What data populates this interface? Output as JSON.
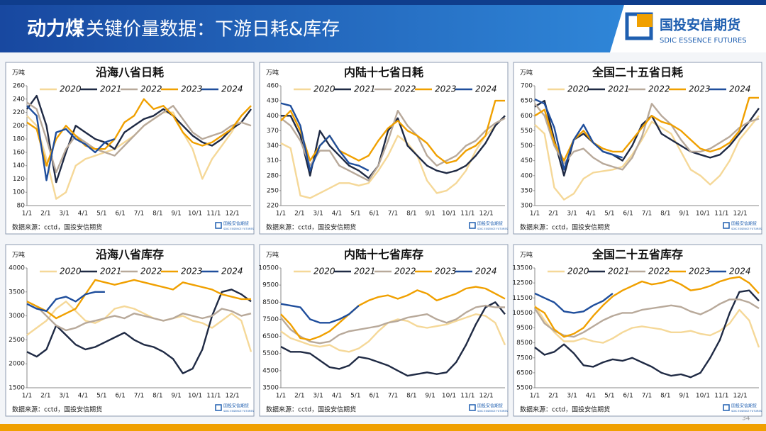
{
  "header": {
    "title_bold": "动力煤",
    "title_rest": "关键价量数据：下游日耗&库存",
    "logo_name": "国投安信期货",
    "logo_en": "SDIC ESSENCE FUTURES",
    "page": "34"
  },
  "chart_data": [
    {
      "type": "line",
      "title": "沿海八省日耗",
      "unit": "万吨",
      "source": "数据来源：cctd，国投安信期货",
      "logo_name": "国投安信期货",
      "logo_en": "SDIC ESSENCE FUTURES",
      "xtick_labels": [
        "1/1",
        "2/1",
        "3/1",
        "4/1",
        "5/1",
        "6/1",
        "7/1",
        "8/1",
        "9/1",
        "10/1",
        "11/1",
        "12/1"
      ],
      "ylim": [
        80,
        260
      ],
      "yticks": [
        80,
        100,
        120,
        140,
        160,
        180,
        200,
        220,
        240,
        260
      ],
      "series": [
        {
          "name": "2020",
          "color": "#f5d898",
          "values": [
            215,
            200,
            150,
            90,
            100,
            140,
            150,
            155,
            160,
            165,
            175,
            185,
            200,
            210,
            220,
            220,
            190,
            165,
            120,
            150,
            170,
            190,
            215,
            230
          ]
        },
        {
          "name": "2021",
          "color": "#1f2a44",
          "values": [
            225,
            245,
            200,
            115,
            160,
            200,
            190,
            180,
            175,
            165,
            190,
            200,
            210,
            215,
            225,
            215,
            200,
            185,
            175,
            170,
            180,
            195,
            205,
            225
          ]
        },
        {
          "name": "2022",
          "color": "#b8a99a",
          "values": [
            235,
            225,
            180,
            130,
            165,
            185,
            175,
            165,
            160,
            155,
            170,
            185,
            200,
            210,
            220,
            230,
            210,
            190,
            180,
            185,
            190,
            200,
            205,
            200
          ]
        },
        {
          "name": "2023",
          "color": "#f0a000",
          "values": [
            205,
            195,
            140,
            180,
            200,
            185,
            170,
            165,
            165,
            180,
            205,
            215,
            240,
            225,
            230,
            215,
            190,
            175,
            170,
            175,
            185,
            195,
            215,
            230
          ]
        },
        {
          "name": "2024",
          "color": "#1f4e9c",
          "values": [
            230,
            215,
            118,
            190,
            195,
            180,
            172,
            160,
            175,
            180,
            null,
            null,
            null,
            null,
            null,
            null,
            null,
            null,
            null,
            null,
            null,
            null,
            null,
            null
          ]
        }
      ]
    },
    {
      "type": "line",
      "title": "内陆十七省日耗",
      "unit": "万吨",
      "source": "数据来源：cctd，国投安信期货",
      "logo_name": "国投安信期货",
      "logo_en": "SDIC ESSENCE FUTURES",
      "xtick_labels": [
        "1/1",
        "2/1",
        "3/1",
        "4/1",
        "5/1",
        "6/1",
        "7/1",
        "8/1",
        "9/1",
        "10/1",
        "11/1",
        "12/1"
      ],
      "ylim": [
        220,
        460
      ],
      "yticks": [
        220,
        250,
        280,
        310,
        340,
        370,
        400,
        430,
        460
      ],
      "series": [
        {
          "name": "2020",
          "color": "#f5d898",
          "values": [
            345,
            335,
            240,
            235,
            245,
            255,
            265,
            265,
            260,
            265,
            290,
            320,
            360,
            345,
            320,
            270,
            245,
            250,
            265,
            290,
            330,
            360,
            380,
            400
          ]
        },
        {
          "name": "2021",
          "color": "#1f2a44",
          "values": [
            400,
            400,
            360,
            280,
            370,
            340,
            320,
            300,
            290,
            275,
            300,
            370,
            395,
            340,
            320,
            300,
            290,
            285,
            290,
            300,
            320,
            345,
            380,
            400
          ]
        },
        {
          "name": "2022",
          "color": "#b8a99a",
          "values": [
            395,
            380,
            350,
            300,
            330,
            330,
            300,
            290,
            280,
            270,
            300,
            350,
            410,
            380,
            360,
            320,
            300,
            310,
            320,
            340,
            350,
            370,
            385,
            395
          ]
        },
        {
          "name": "2023",
          "color": "#f0a000",
          "values": [
            390,
            410,
            370,
            310,
            340,
            360,
            330,
            320,
            310,
            320,
            350,
            375,
            390,
            370,
            360,
            345,
            320,
            305,
            310,
            330,
            340,
            360,
            430,
            430
          ]
        },
        {
          "name": "2024",
          "color": "#1f4e9c",
          "values": [
            425,
            420,
            380,
            290,
            340,
            360,
            330,
            305,
            300,
            290,
            null,
            null,
            null,
            null,
            null,
            null,
            null,
            null,
            null,
            null,
            null,
            null,
            null,
            null
          ]
        }
      ]
    },
    {
      "type": "line",
      "title": "全国二十五省日耗",
      "unit": "万吨",
      "source": "数据来源：cctd，国投安信期货",
      "logo_name": "国投安信期货",
      "logo_en": "SDIC ESSENCE FUTURES",
      "xtick_labels": [
        "1/1",
        "2/1",
        "3/1",
        "4/1",
        "5/1",
        "6/1",
        "7/1",
        "8/1",
        "9/1",
        "10/1",
        "11/1",
        "12/1"
      ],
      "ylim": [
        300,
        700
      ],
      "yticks": [
        300,
        350,
        400,
        450,
        500,
        550,
        600,
        650,
        700
      ],
      "series": [
        {
          "name": "2020",
          "color": "#f5d898",
          "values": [
            570,
            540,
            360,
            320,
            340,
            390,
            410,
            415,
            420,
            430,
            470,
            520,
            580,
            560,
            540,
            480,
            420,
            400,
            370,
            400,
            450,
            520,
            560,
            600
          ]
        },
        {
          "name": "2021",
          "color": "#1f2a44",
          "values": [
            630,
            650,
            520,
            400,
            520,
            540,
            510,
            480,
            470,
            450,
            500,
            570,
            600,
            540,
            520,
            500,
            480,
            470,
            460,
            470,
            500,
            540,
            580,
            625
          ]
        },
        {
          "name": "2022",
          "color": "#b8a99a",
          "values": [
            640,
            600,
            500,
            440,
            480,
            490,
            460,
            440,
            430,
            420,
            460,
            530,
            640,
            600,
            570,
            520,
            480,
            480,
            490,
            510,
            530,
            560,
            580,
            590
          ]
        },
        {
          "name": "2023",
          "color": "#f0a000",
          "values": [
            600,
            620,
            510,
            450,
            520,
            550,
            510,
            490,
            480,
            480,
            520,
            560,
            600,
            580,
            570,
            550,
            520,
            490,
            480,
            490,
            510,
            550,
            660,
            660
          ]
        },
        {
          "name": "2024",
          "color": "#1f4e9c",
          "values": [
            655,
            640,
            560,
            420,
            520,
            570,
            510,
            480,
            470,
            460,
            null,
            null,
            null,
            null,
            null,
            null,
            null,
            null,
            null,
            null,
            null,
            null,
            null,
            null
          ]
        }
      ]
    },
    {
      "type": "line",
      "title": "沿海八省库存",
      "unit": "万吨",
      "source": "数据来源：cctd，国投安信期货",
      "logo_name": "国投安信期货",
      "logo_en": "SDIC ESSENCE FUTURES",
      "xtick_labels": [
        "1/1",
        "2/1",
        "3/1",
        "4/1",
        "5/1",
        "6/1",
        "7/1",
        "8/1",
        "9/1",
        "10/1",
        "11/1",
        "12/1"
      ],
      "ylim": [
        1500,
        4000
      ],
      "yticks": [
        1500,
        2000,
        2500,
        3000,
        3500,
        4000
      ],
      "series": [
        {
          "name": "2020",
          "color": "#f5d898",
          "values": [
            2600,
            2750,
            2900,
            3150,
            3300,
            3100,
            2900,
            2850,
            2950,
            3150,
            3200,
            3150,
            3050,
            2950,
            2900,
            2950,
            3000,
            2900,
            2850,
            2750,
            2900,
            3050,
            2900,
            2250
          ]
        },
        {
          "name": "2021",
          "color": "#1f2a44",
          "values": [
            2250,
            2150,
            2300,
            2800,
            2600,
            2400,
            2300,
            2350,
            2450,
            2550,
            2650,
            2500,
            2400,
            2350,
            2250,
            2100,
            1800,
            1900,
            2300,
            3000,
            3500,
            3550,
            3450,
            3300
          ]
        },
        {
          "name": "2022",
          "color": "#b8a99a",
          "values": [
            3300,
            3200,
            3000,
            2800,
            2700,
            2750,
            2850,
            2900,
            2950,
            3000,
            2950,
            3050,
            3000,
            2950,
            2900,
            2950,
            3050,
            3000,
            2950,
            3000,
            3150,
            3100,
            3000,
            3050
          ]
        },
        {
          "name": "2023",
          "color": "#f0a000",
          "values": [
            3300,
            3200,
            3100,
            2950,
            3050,
            3150,
            3450,
            3750,
            3700,
            3650,
            3700,
            3750,
            3700,
            3650,
            3600,
            3550,
            3700,
            3650,
            3600,
            3550,
            3450,
            3400,
            3350,
            3350
          ]
        },
        {
          "name": "2024",
          "color": "#1f4e9c",
          "values": [
            3250,
            3150,
            3100,
            3350,
            3400,
            3300,
            3450,
            3500,
            3500,
            null,
            null,
            null,
            null,
            null,
            null,
            null,
            null,
            null,
            null,
            null,
            null,
            null,
            null,
            null
          ]
        }
      ]
    },
    {
      "type": "line",
      "title": "内陆十七省库存",
      "unit": "万吨",
      "source": "数据来源：cctd，国投安信期货",
      "logo_name": "国投安信期货",
      "logo_en": "SDIC ESSENCE FUTURES",
      "xtick_labels": [
        "1/1",
        "2/1",
        "3/1",
        "4/1",
        "5/1",
        "6/1",
        "7/1",
        "8/1",
        "9/1",
        "10/1",
        "11/1",
        "12/1"
      ],
      "ylim": [
        3500,
        10500
      ],
      "yticks": [
        3500,
        4500,
        5500,
        6500,
        7500,
        8500,
        9500,
        10500
      ],
      "series": [
        {
          "name": "2020",
          "color": "#f5d898",
          "values": [
            6800,
            6400,
            6200,
            6000,
            5900,
            6000,
            5700,
            5600,
            5800,
            6200,
            6800,
            7300,
            7500,
            7400,
            7100,
            7000,
            7100,
            7200,
            7400,
            7600,
            7800,
            7700,
            7300,
            6000
          ]
        },
        {
          "name": "2021",
          "color": "#1f2a44",
          "values": [
            5900,
            5600,
            5600,
            5500,
            5100,
            4700,
            4600,
            4800,
            5300,
            5200,
            5000,
            4800,
            4500,
            4200,
            4300,
            4400,
            4300,
            4400,
            5000,
            6000,
            7200,
            8200,
            8500,
            7800
          ]
        },
        {
          "name": "2022",
          "color": "#b8a99a",
          "values": [
            7600,
            6900,
            6500,
            6200,
            6100,
            6200,
            6600,
            6800,
            6900,
            7000,
            7100,
            7300,
            7400,
            7600,
            7700,
            7800,
            7500,
            7300,
            7500,
            7900,
            8200,
            8300,
            8200,
            8200
          ]
        },
        {
          "name": "2023",
          "color": "#f0a000",
          "values": [
            7800,
            7200,
            6400,
            6300,
            6500,
            6800,
            7300,
            7800,
            8300,
            8600,
            8800,
            8900,
            8700,
            8900,
            9200,
            9000,
            8600,
            8800,
            9000,
            9300,
            9400,
            9300,
            9000,
            8700
          ]
        },
        {
          "name": "2024",
          "color": "#1f4e9c",
          "values": [
            8400,
            8300,
            8200,
            7500,
            7300,
            7300,
            7500,
            7800,
            8300,
            null,
            null,
            null,
            null,
            null,
            null,
            null,
            null,
            null,
            null,
            null,
            null,
            null,
            null,
            null
          ]
        }
      ]
    },
    {
      "type": "line",
      "title": "全国二十五省库存",
      "unit": "万吨",
      "source": "数据来源：cctd，国投安信期货",
      "logo_name": "国投安信期货",
      "logo_en": "SDIC ESSENCE FUTURES",
      "xtick_labels": [
        "1/1",
        "2/1",
        "3/1",
        "4/1",
        "5/1",
        "6/1",
        "7/1",
        "8/1",
        "9/1",
        "10/1",
        "11/1",
        "12/1"
      ],
      "ylim": [
        5500,
        13500
      ],
      "yticks": [
        5500,
        6500,
        7500,
        8500,
        9500,
        10500,
        11500,
        12500,
        13500
      ],
      "series": [
        {
          "name": "2020",
          "color": "#f5d898",
          "values": [
            11000,
            10000,
            9200,
            8600,
            8600,
            8800,
            8600,
            8500,
            8800,
            9200,
            9500,
            9600,
            9500,
            9400,
            9200,
            9200,
            9300,
            9100,
            9000,
            9300,
            9800,
            10700,
            10000,
            8200
          ]
        },
        {
          "name": "2021",
          "color": "#1f2a44",
          "values": [
            8200,
            7700,
            7900,
            8400,
            7800,
            7000,
            6900,
            7200,
            7400,
            7300,
            7500,
            7200,
            6900,
            6500,
            6300,
            6400,
            6200,
            6500,
            7500,
            8700,
            10500,
            11900,
            12000,
            11300
          ]
        },
        {
          "name": "2022",
          "color": "#b8a99a",
          "values": [
            10800,
            9800,
            9300,
            9000,
            8900,
            9200,
            9600,
            10000,
            10300,
            10500,
            10500,
            10700,
            10800,
            10900,
            11000,
            10900,
            10600,
            10400,
            10700,
            11100,
            11400,
            11400,
            11200,
            10800
          ]
        },
        {
          "name": "2023",
          "color": "#f0a000",
          "values": [
            10900,
            10500,
            9400,
            8900,
            9100,
            9500,
            10300,
            11000,
            11600,
            12000,
            12300,
            12600,
            12400,
            12500,
            12700,
            12400,
            12000,
            12100,
            12300,
            12600,
            12800,
            12900,
            12500,
            11800
          ]
        },
        {
          "name": "2024",
          "color": "#1f4e9c",
          "values": [
            11800,
            11500,
            11200,
            10600,
            10500,
            10600,
            11000,
            11300,
            11800,
            null,
            null,
            null,
            null,
            null,
            null,
            null,
            null,
            null,
            null,
            null,
            null,
            null,
            null,
            null
          ]
        }
      ]
    }
  ]
}
